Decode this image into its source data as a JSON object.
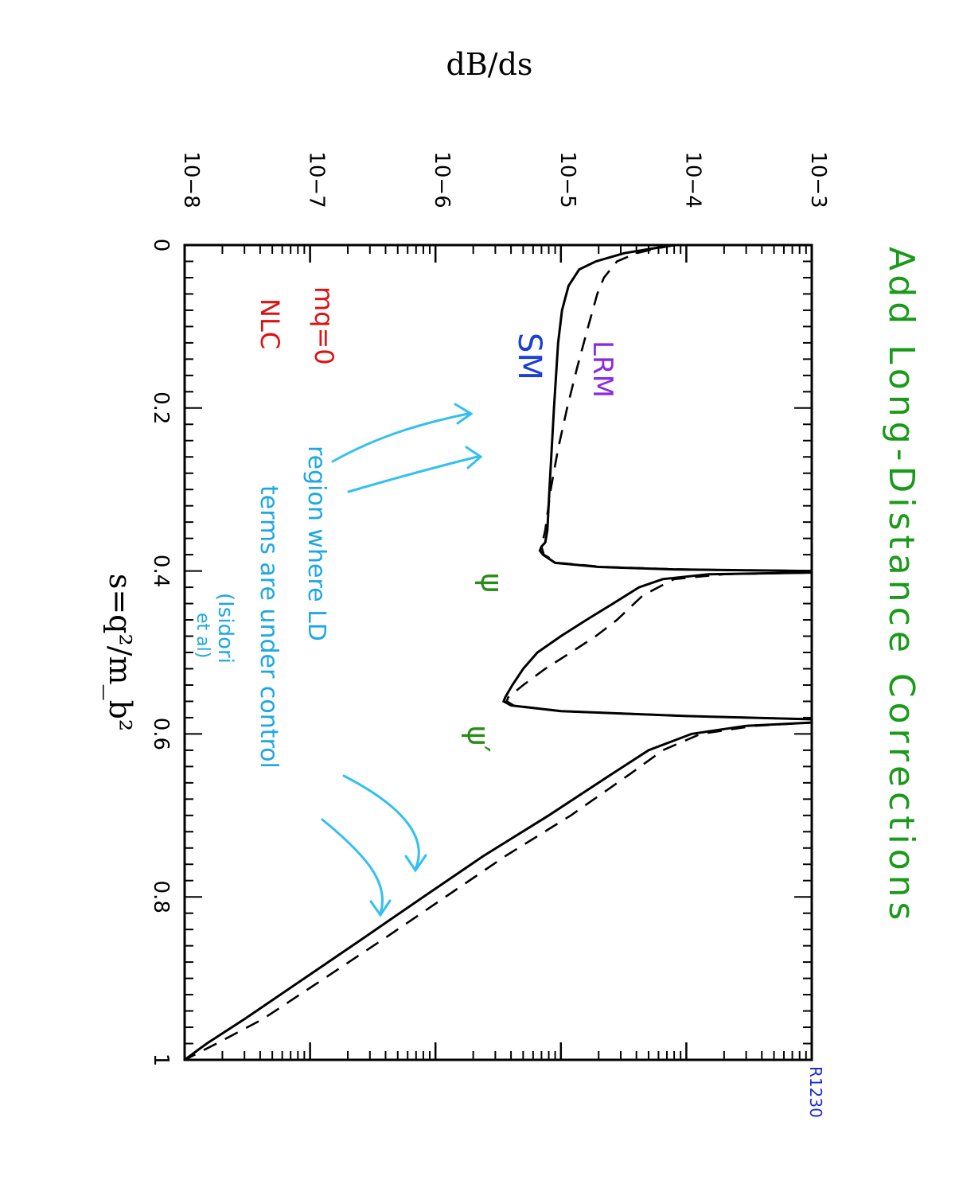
{
  "chart_data": {
    "type": "line",
    "title": "Add Long-Distance Corrections",
    "xlabel": "s=q²/m_b²",
    "ylabel": "dB/ds",
    "xlim": [
      0,
      1
    ],
    "ylim": [
      1e-08,
      0.001
    ],
    "y_scale": "log",
    "x_ticks": [
      "0",
      "0.2",
      "0.4",
      "0.6",
      "0.8",
      "1"
    ],
    "y_ticks": [
      "10−8",
      "10−7",
      "10−6",
      "10−5",
      "10−4",
      "10−3"
    ],
    "grid": false,
    "orientation": "rotated 90° clockwise",
    "series": [
      {
        "name": "SM",
        "style": "solid",
        "points": [
          [
            0.0,
            8e-05
          ],
          [
            0.005,
            5e-05
          ],
          [
            0.01,
            3.2e-05
          ],
          [
            0.02,
            1.9e-05
          ],
          [
            0.03,
            1.4e-05
          ],
          [
            0.05,
            1.15e-05
          ],
          [
            0.08,
            1.02e-05
          ],
          [
            0.12,
            9.5e-06
          ],
          [
            0.2,
            8.8e-06
          ],
          [
            0.3,
            8.1e-06
          ],
          [
            0.35,
            7.8e-06
          ],
          [
            0.365,
            7.5e-06
          ],
          [
            0.37,
            7e-06
          ],
          [
            0.375,
            6.8e-06
          ],
          [
            0.38,
            7.2e-06
          ],
          [
            0.39,
            9e-06
          ],
          [
            0.395,
            2e-05
          ],
          [
            0.398,
            8e-05
          ],
          [
            0.4,
            0.001
          ],
          [
            0.402,
            0.001
          ],
          [
            0.404,
            0.00015
          ],
          [
            0.41,
            6.5e-05
          ],
          [
            0.42,
            4.2e-05
          ],
          [
            0.44,
            2.6e-05
          ],
          [
            0.46,
            1.6e-05
          ],
          [
            0.48,
            1e-05
          ],
          [
            0.5,
            6.5e-06
          ],
          [
            0.52,
            5e-06
          ],
          [
            0.54,
            4.1e-06
          ],
          [
            0.555,
            3.6e-06
          ],
          [
            0.56,
            3.5e-06
          ],
          [
            0.565,
            4e-06
          ],
          [
            0.572,
            1e-05
          ],
          [
            0.578,
            0.0001
          ],
          [
            0.582,
            0.001
          ],
          [
            0.586,
            0.001
          ],
          [
            0.59,
            0.0003
          ],
          [
            0.6,
            0.00011
          ],
          [
            0.62,
            5e-05
          ],
          [
            0.65,
            2.5e-05
          ],
          [
            0.7,
            8e-06
          ],
          [
            0.75,
            2.4e-06
          ],
          [
            0.8,
            8e-07
          ],
          [
            0.85,
            2.7e-07
          ],
          [
            0.9,
            9e-08
          ],
          [
            0.95,
            3e-08
          ],
          [
            0.98,
            1.5e-08
          ],
          [
            1.0,
            1e-08
          ]
        ]
      },
      {
        "name": "LRM",
        "style": "dashed",
        "points": [
          [
            0.0,
            8e-05
          ],
          [
            0.005,
            5.5e-05
          ],
          [
            0.01,
            4e-05
          ],
          [
            0.02,
            2.8e-05
          ],
          [
            0.04,
            2.2e-05
          ],
          [
            0.06,
            1.95e-05
          ],
          [
            0.1,
            1.65e-05
          ],
          [
            0.15,
            1.35e-05
          ],
          [
            0.2,
            1.12e-05
          ],
          [
            0.25,
            9.5e-06
          ],
          [
            0.3,
            8.3e-06
          ],
          [
            0.35,
            7.5e-06
          ],
          [
            0.37,
            7e-06
          ],
          [
            0.38,
            7.3e-06
          ],
          [
            0.39,
            9.5e-06
          ],
          [
            0.395,
            2.2e-05
          ],
          [
            0.398,
            9e-05
          ],
          [
            0.4,
            0.001
          ],
          [
            0.402,
            0.001
          ],
          [
            0.404,
            0.0002
          ],
          [
            0.41,
            8e-05
          ],
          [
            0.43,
            4.5e-05
          ],
          [
            0.46,
            2.8e-05
          ],
          [
            0.48,
            1.9e-05
          ],
          [
            0.5,
            1.2e-05
          ],
          [
            0.52,
            7.5e-06
          ],
          [
            0.54,
            5e-06
          ],
          [
            0.555,
            3.8e-06
          ],
          [
            0.56,
            3.7e-06
          ],
          [
            0.565,
            4.2e-06
          ],
          [
            0.572,
            1e-05
          ],
          [
            0.578,
            0.0001
          ],
          [
            0.582,
            0.001
          ],
          [
            0.586,
            0.001
          ],
          [
            0.59,
            0.00035
          ],
          [
            0.6,
            0.00013
          ],
          [
            0.62,
            6.5e-05
          ],
          [
            0.65,
            3.5e-05
          ],
          [
            0.7,
            1.2e-05
          ],
          [
            0.75,
            3.6e-06
          ],
          [
            0.8,
            1.2e-06
          ],
          [
            0.85,
            4e-07
          ],
          [
            0.9,
            1.3e-07
          ],
          [
            0.95,
            4.2e-08
          ],
          [
            0.98,
            1.8e-08
          ],
          [
            1.0,
            1e-08
          ]
        ]
      }
    ],
    "annotations": {
      "lrm": "LRM",
      "sm": "SM",
      "mq": "mq=0",
      "nlc": "NLC",
      "psi": "ψ",
      "psi_prime": "ψ′",
      "region_line1": "region where LD",
      "region_line2": "terms are under control",
      "region_line3": "(Isidori",
      "region_line4": "et al)",
      "corner": "R1230"
    }
  },
  "colors": {
    "title": "#1a9a1a",
    "lrm": "#8a2be2",
    "sm": "#1a3fd6",
    "red": "#e01010",
    "psi": "#2a8a1a",
    "region": "#1ea7e0",
    "arrow": "#33bff0",
    "corner": "#1a2ad6"
  }
}
